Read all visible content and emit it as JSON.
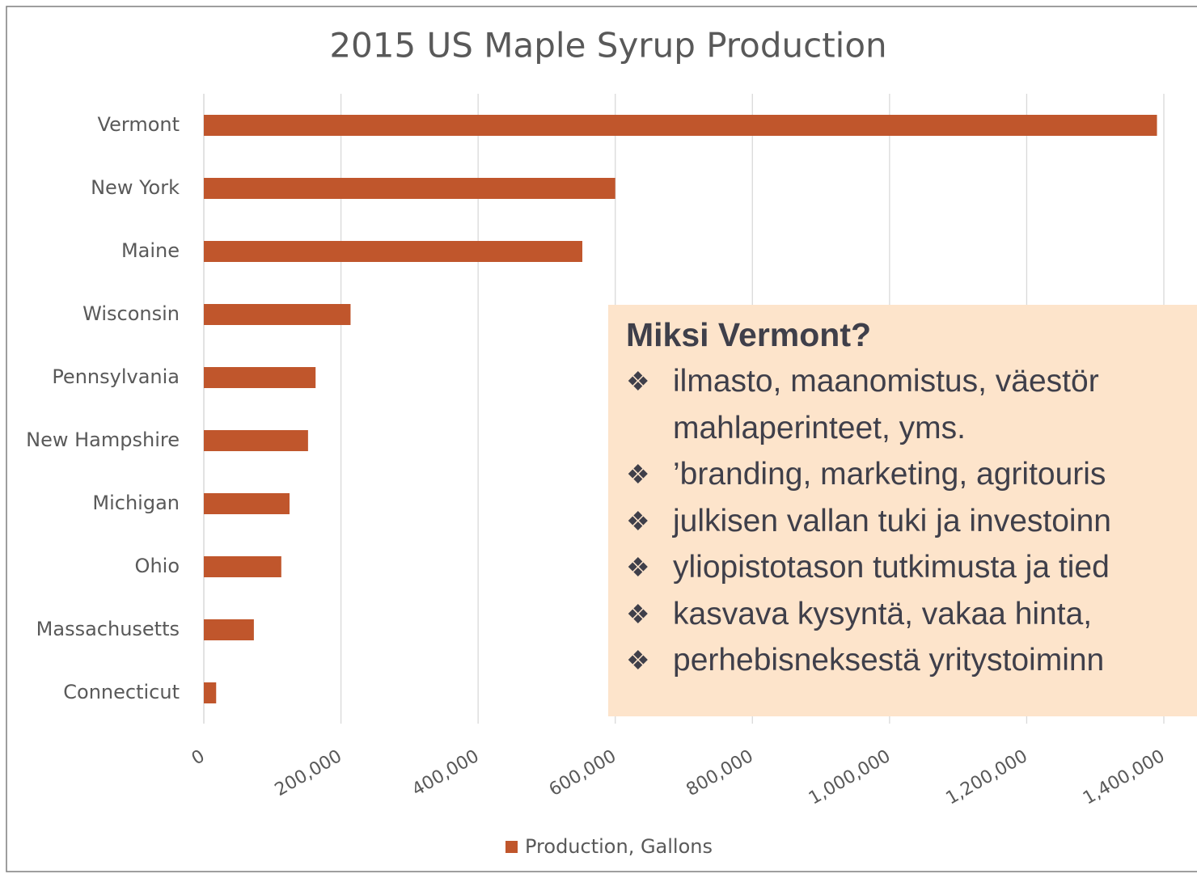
{
  "chart_data": {
    "type": "bar",
    "orientation": "horizontal",
    "title": "2015 US Maple Syrup Production",
    "categories": [
      "Vermont",
      "New York",
      "Maine",
      "Wisconsin",
      "Pennsylvania",
      "New Hampshire",
      "Michigan",
      "Ohio",
      "Massachusetts",
      "Connecticut"
    ],
    "series": [
      {
        "name": "Production, Gallons",
        "color": "#c0562c",
        "values": [
          1390000,
          600000,
          552000,
          214000,
          163000,
          152000,
          125000,
          113000,
          73000,
          18000
        ]
      }
    ],
    "xlim": [
      0,
      1400000
    ],
    "xticks": [
      0,
      {
        "value": 200000,
        "label": "200,000"
      },
      {
        "value": 400000,
        "label": "400,000"
      },
      {
        "value": 600000,
        "label": "600,000"
      },
      {
        "value": 800000,
        "label": "800,000"
      },
      {
        "value": 1000000,
        "label": "1,000,000"
      },
      {
        "value": 1200000,
        "label": "1,200,000"
      },
      {
        "value": 1400000,
        "label": "1,400,000"
      }
    ],
    "grid": true,
    "legend": "bottom"
  },
  "text_box": {
    "title": "Miksi Vermont?",
    "bullets": [
      [
        "ilmasto, maanomistus, väestör",
        "mahlaperinteet, yms."
      ],
      [
        "’branding, marketing, agritouris"
      ],
      [
        "julkisen vallan tuki ja investoinn"
      ],
      [
        "yliopistotason tutkimusta ja tied"
      ],
      [
        "kasvava kysyntä, vakaa hinta,"
      ],
      [
        "perhebisneksestä yritystoiminn"
      ]
    ]
  }
}
